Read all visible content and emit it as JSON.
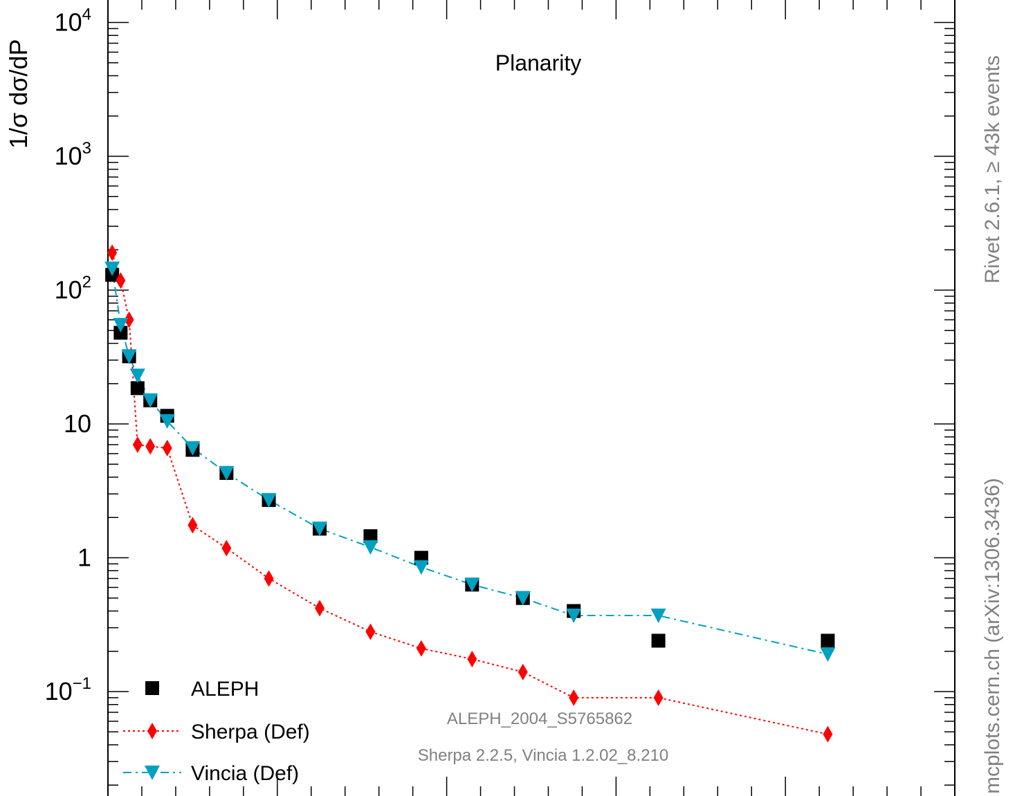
{
  "chart_data": {
    "type": "scatter",
    "title": "Planarity",
    "ylabel": "1/σ  dσ/dP",
    "yscale": "log",
    "ylim": [
      0.0195,
      12000
    ],
    "xlim": [
      0,
      0.5
    ],
    "y_tick_labels": [
      {
        "value": 10000,
        "mant": "10",
        "exp": "4"
      },
      {
        "value": 1000,
        "mant": "10",
        "exp": "3"
      },
      {
        "value": 100,
        "mant": "10",
        "exp": "2"
      },
      {
        "value": 10,
        "mant": "10",
        "exp": ""
      },
      {
        "value": 1,
        "mant": "1",
        "exp": ""
      },
      {
        "value": 0.1,
        "mant": "10",
        "exp": "−1"
      }
    ],
    "series": [
      {
        "name": "ALEPH",
        "marker": "square",
        "color": "#000000",
        "x": [
          0.0025,
          0.0075,
          0.0125,
          0.0175,
          0.025,
          0.035,
          0.05,
          0.07,
          0.095,
          0.125,
          0.155,
          0.185,
          0.215,
          0.245,
          0.275,
          0.325,
          0.425
        ],
        "y": [
          130,
          48,
          32,
          18.5,
          15,
          11.5,
          6.4,
          4.3,
          2.7,
          1.65,
          1.45,
          1.0,
          0.63,
          0.5,
          0.4,
          0.24,
          0.24
        ]
      },
      {
        "name": "Sherpa (Def)",
        "marker": "diamond",
        "color": "#ff0000",
        "line": "dotted",
        "x": [
          0.0025,
          0.0075,
          0.0125,
          0.0175,
          0.025,
          0.035,
          0.05,
          0.07,
          0.095,
          0.125,
          0.155,
          0.185,
          0.215,
          0.245,
          0.275,
          0.325,
          0.425
        ],
        "y": [
          190,
          118,
          60,
          7.0,
          6.8,
          6.6,
          1.75,
          1.18,
          0.7,
          0.42,
          0.28,
          0.21,
          0.175,
          0.14,
          0.09,
          0.09,
          0.048
        ]
      },
      {
        "name": "Vincia (Def)",
        "marker": "triangle-down",
        "color": "#00a0c0",
        "line": "dashdot",
        "x": [
          0.0025,
          0.0075,
          0.0125,
          0.0175,
          0.025,
          0.035,
          0.05,
          0.07,
          0.095,
          0.125,
          0.155,
          0.185,
          0.215,
          0.245,
          0.275,
          0.325,
          0.425
        ],
        "y": [
          145,
          55,
          32,
          23,
          15,
          10.5,
          6.6,
          4.3,
          2.7,
          1.65,
          1.2,
          0.85,
          0.63,
          0.5,
          0.37,
          0.37,
          0.19
        ]
      }
    ],
    "annotations": [
      "ALEPH_2004_S5765862",
      "Sherpa 2.2.5, Vincia 1.2.02_8.210"
    ],
    "legend": {
      "position": "bottom-left",
      "entries": [
        "ALEPH",
        "Sherpa (Def)",
        "Vincia (Def)"
      ]
    },
    "side_labels": [
      "Rivet 2.6.1, ≥ 43k events",
      "mcplots.cern.ch (arXiv:1306.3436)"
    ],
    "colors": {
      "frame": "#000000",
      "side_text": "#808080"
    }
  }
}
